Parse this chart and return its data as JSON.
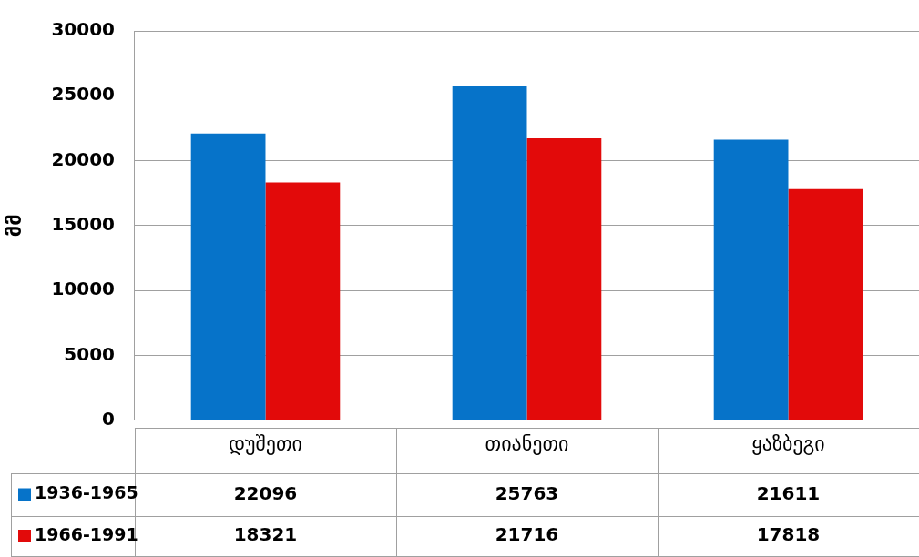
{
  "chart_data": {
    "type": "bar",
    "ylabel": "მმ",
    "categories": [
      "დუშეთი",
      "თიანეთი",
      "ყაზბეგი"
    ],
    "series": [
      {
        "name": "1936-1965",
        "color": "#0673c9",
        "values": [
          22096,
          25763,
          21611
        ]
      },
      {
        "name": "1966-1991",
        "color": "#e20a0a",
        "values": [
          18321,
          21716,
          17818
        ]
      }
    ],
    "ylim": [
      0,
      30000
    ],
    "yticks": [
      0,
      5000,
      10000,
      15000,
      20000,
      25000,
      30000
    ],
    "grid": "y",
    "legend": "bottom left",
    "data_labels": true
  }
}
